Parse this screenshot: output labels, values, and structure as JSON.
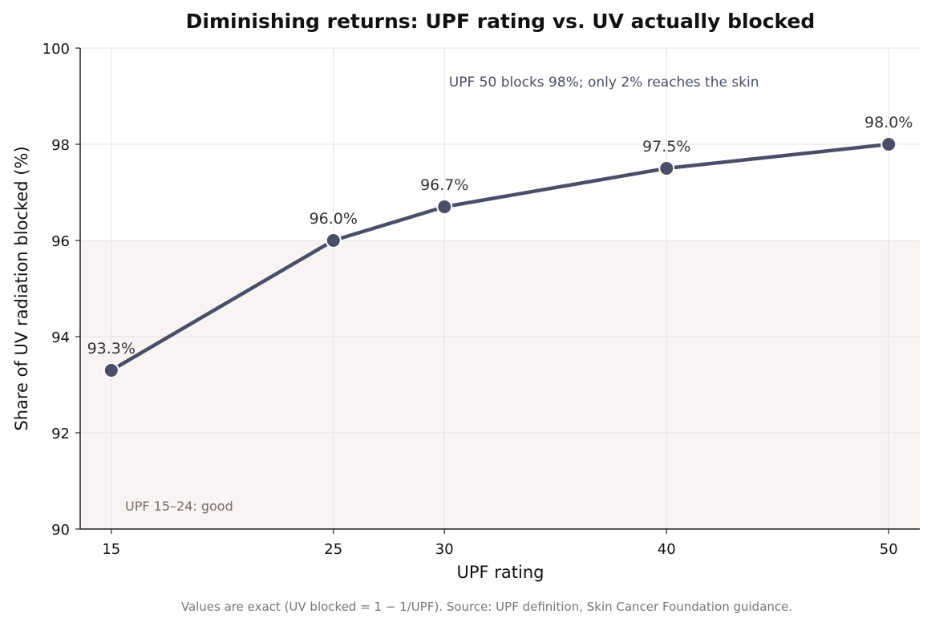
{
  "chart_data": {
    "type": "line",
    "title": "Diminishing returns: UPF rating vs. UV actually blocked",
    "xlabel": "UPF rating",
    "ylabel": "Share of UV radiation blocked (%)",
    "x": [
      15,
      25,
      30,
      40,
      50
    ],
    "y": [
      93.3,
      96.0,
      96.7,
      97.5,
      98.0
    ],
    "point_labels": [
      "93.3%",
      "96.0%",
      "96.7%",
      "97.5%",
      "98.0%"
    ],
    "xlim": [
      13.6,
      51.4
    ],
    "ylim": [
      90,
      100
    ],
    "xticks": [
      15,
      25,
      30,
      40,
      50
    ],
    "yticks": [
      90,
      92,
      94,
      96,
      98,
      100
    ],
    "grid": true,
    "shaded_band": {
      "y_from": 90,
      "y_to": 96,
      "label": "UPF 15–24: good"
    },
    "annotation": {
      "text": "UPF 50 blocks 98%; only 2% reaches the skin",
      "x": 30.2,
      "y": 99.3
    },
    "footnote": "Values are exact (UV blocked = 1 − 1/UPF). Source: UPF definition, Skin Cancer Foundation guidance.",
    "colors": {
      "line": "#4a4e69",
      "band": "#f7f4f3",
      "grid": "#e3e3e3"
    }
  }
}
